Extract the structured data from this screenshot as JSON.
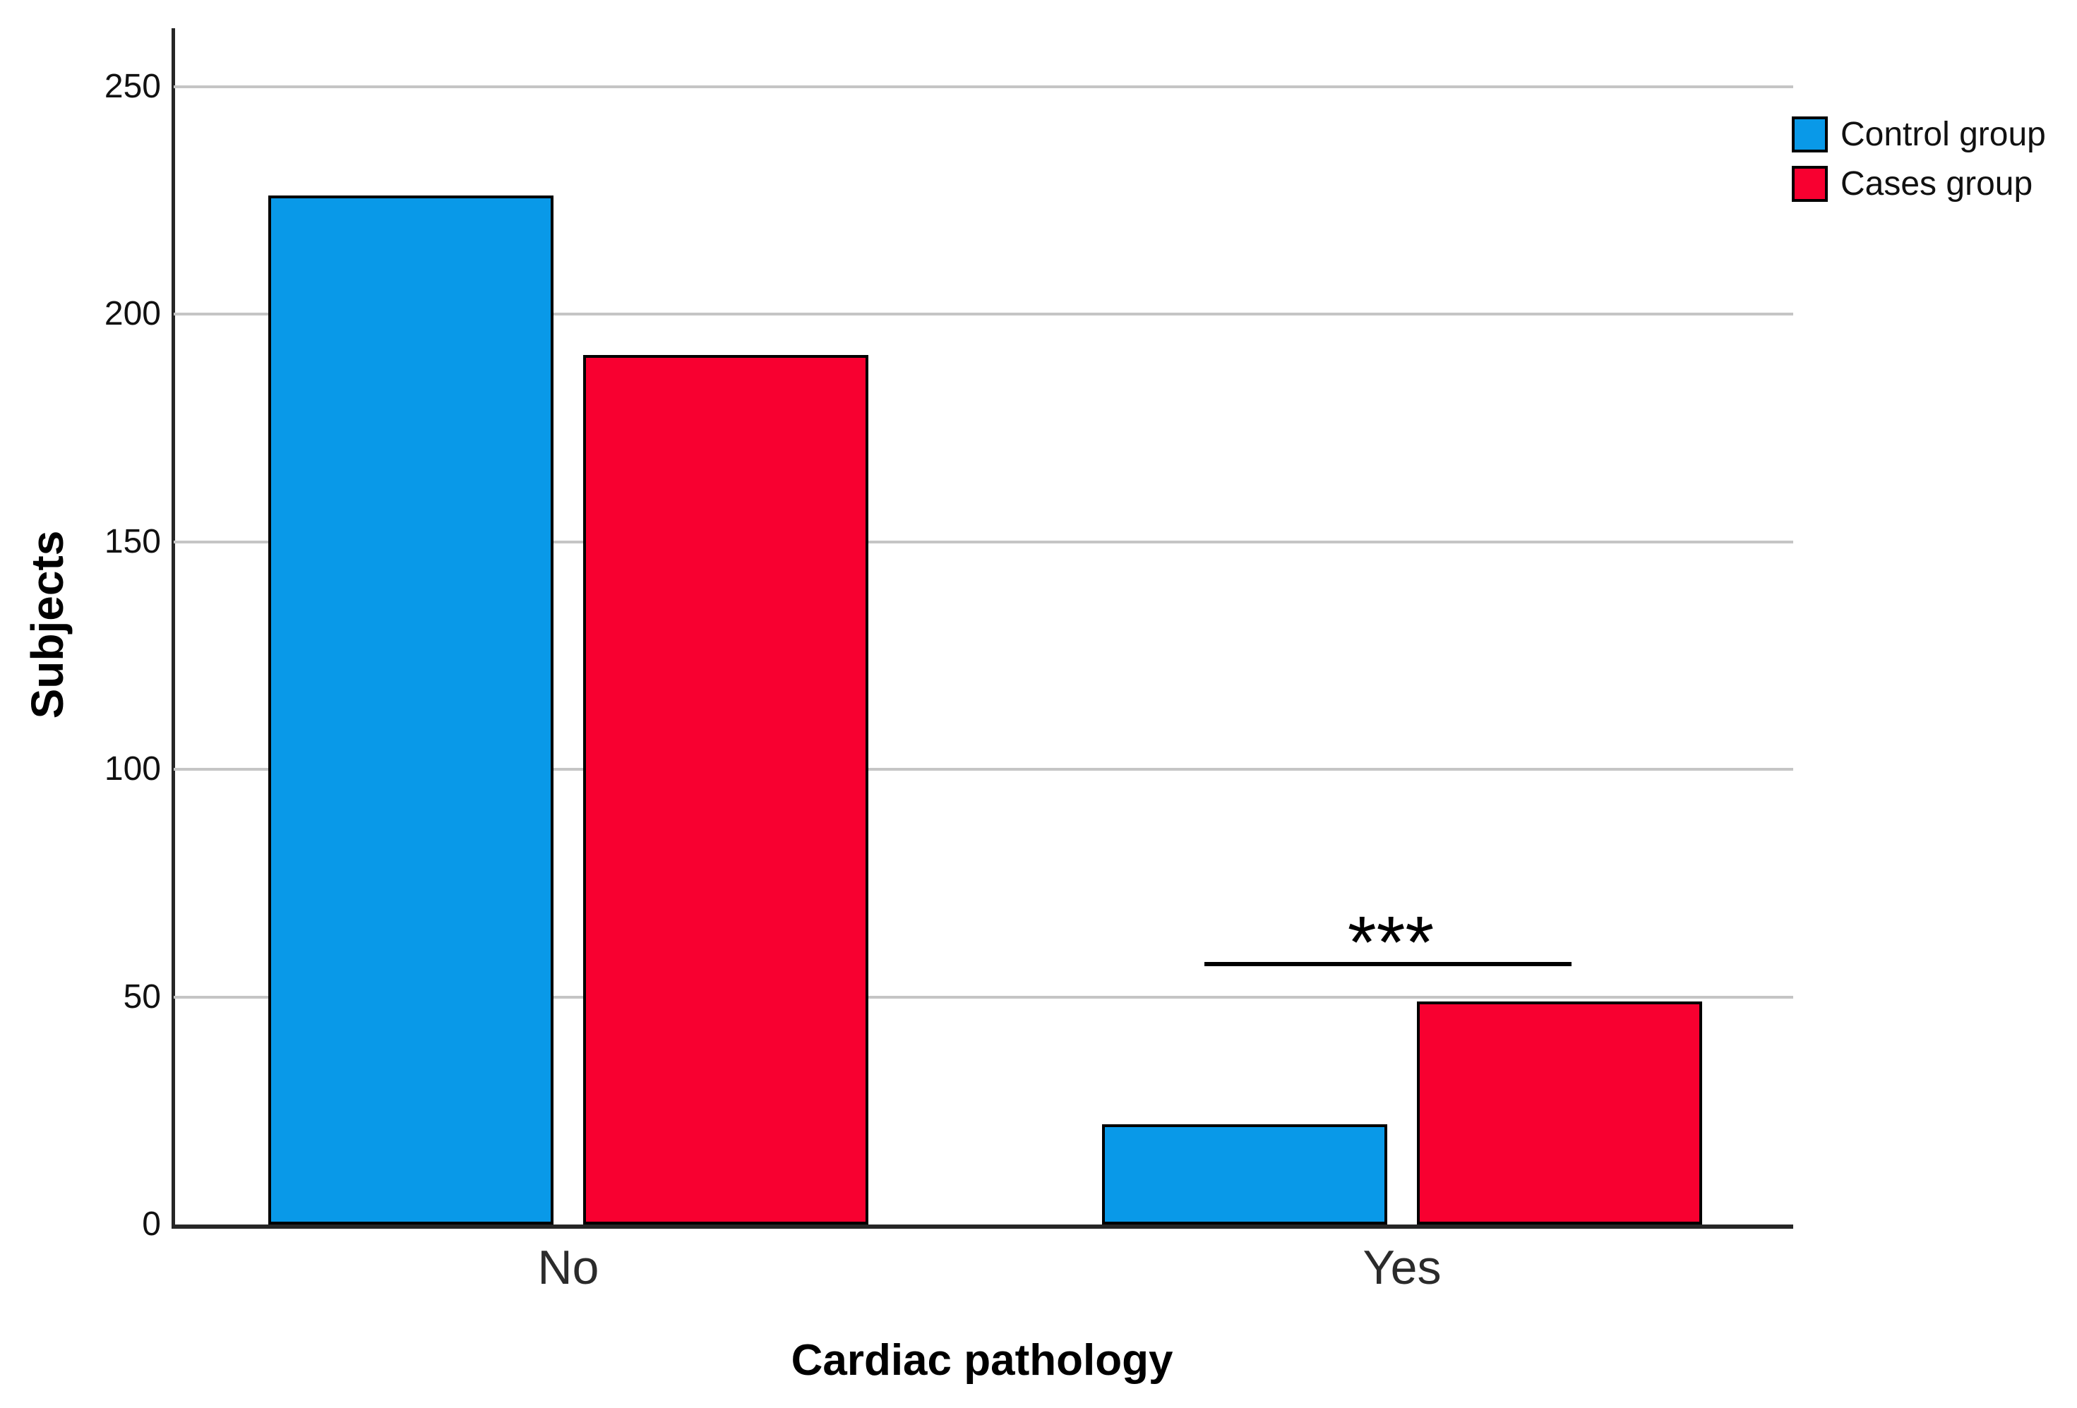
{
  "chart_data": {
    "type": "bar",
    "categories": [
      "No",
      "Yes"
    ],
    "series": [
      {
        "name": "Control group",
        "color": "#0999e8",
        "values": [
          226,
          22
        ]
      },
      {
        "name": "Cases group",
        "color": "#f80030",
        "values": [
          191,
          49
        ]
      }
    ],
    "title": "",
    "xlabel": "Cardiac pathology",
    "ylabel": "Subjects",
    "yticks": [
      0,
      50,
      100,
      150,
      200,
      250
    ],
    "ylim": [
      0,
      265
    ],
    "grid": "horizontal",
    "legend_position": "top-right",
    "annotation": {
      "text": "***",
      "category": "Yes",
      "significance_line": true
    }
  }
}
